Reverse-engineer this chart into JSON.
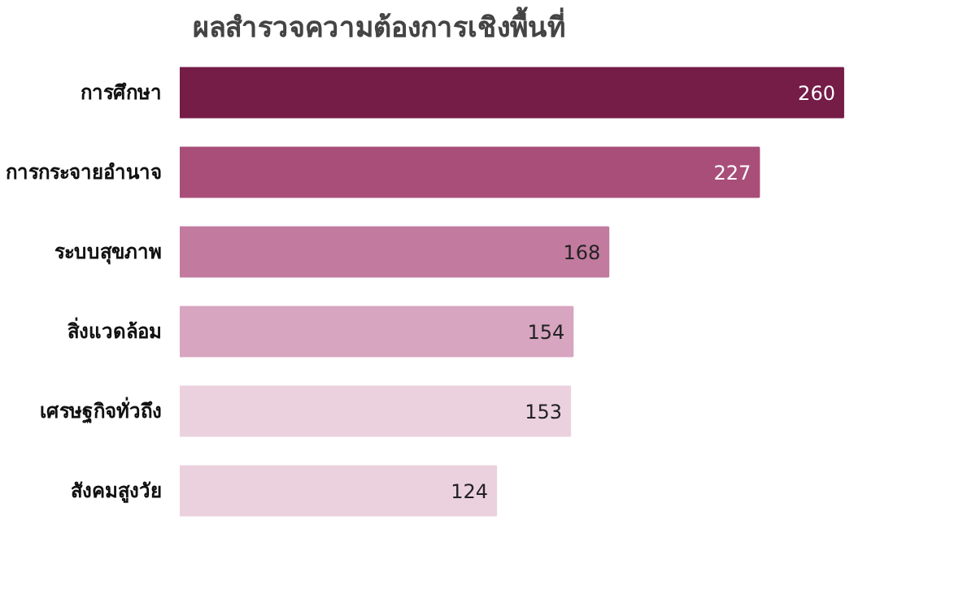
{
  "chart_data": {
    "type": "bar",
    "orientation": "horizontal",
    "title": "ผลสำรวจความต้องการเชิงพื้นที่",
    "categories": [
      "การศึกษา",
      "การกระจายอำนาจ",
      "ระบบสุขภาพ",
      "สิ่งแวดล้อม",
      "เศรษฐกิจทั่วถึง",
      "สังคมสูงวัย"
    ],
    "values": [
      260,
      227,
      168,
      154,
      153,
      124
    ],
    "colors": [
      "#751c47",
      "#a84e79",
      "#c27a9f",
      "#d7a5c0",
      "#ebd1de",
      "#ebd1de"
    ],
    "data_labels": true,
    "grid": false
  }
}
